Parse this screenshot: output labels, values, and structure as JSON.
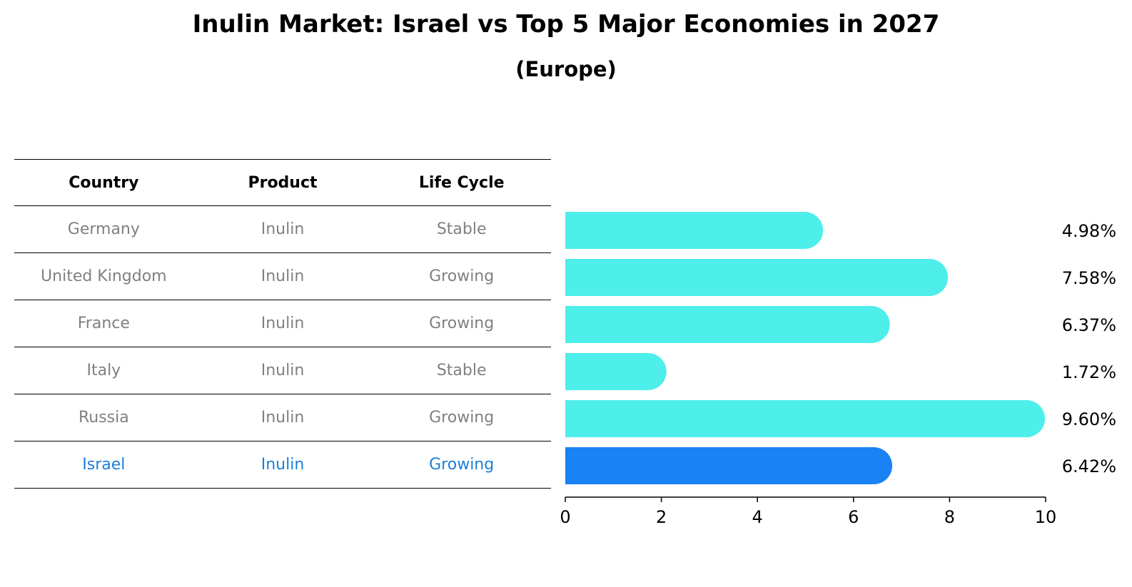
{
  "chart_data": {
    "type": "bar",
    "orientation": "horizontal",
    "title": "Inulin Market: Israel vs Top 5 Major Economies in 2027",
    "subtitle": "(Europe)",
    "categories": [
      "Germany",
      "United Kingdom",
      "France",
      "Italy",
      "Russia",
      "Israel"
    ],
    "values": [
      4.98,
      7.58,
      6.37,
      1.72,
      9.6,
      6.42
    ],
    "value_labels": [
      "4.98%",
      "7.58%",
      "6.37%",
      "1.72%",
      "9.60%",
      "6.42%"
    ],
    "highlight": "Israel",
    "xlim": [
      0,
      10
    ],
    "xticks": [
      0,
      2,
      4,
      6,
      8,
      10
    ],
    "xtick_labels": [
      "0",
      "2",
      "4",
      "6",
      "8",
      "10"
    ],
    "colors": {
      "bar": "#4eeeea",
      "highlight": "#1a82f5",
      "text_muted": "#808080",
      "text_highlight": "#1a7fdb"
    }
  },
  "table": {
    "headers": [
      "Country",
      "Product",
      "Life Cycle"
    ],
    "rows": [
      [
        "Germany",
        "Inulin",
        "Stable"
      ],
      [
        "United Kingdom",
        "Inulin",
        "Growing"
      ],
      [
        "France",
        "Inulin",
        "Growing"
      ],
      [
        "Italy",
        "Inulin",
        "Stable"
      ],
      [
        "Russia",
        "Inulin",
        "Growing"
      ],
      [
        "Israel",
        "Inulin",
        "Growing"
      ]
    ]
  }
}
